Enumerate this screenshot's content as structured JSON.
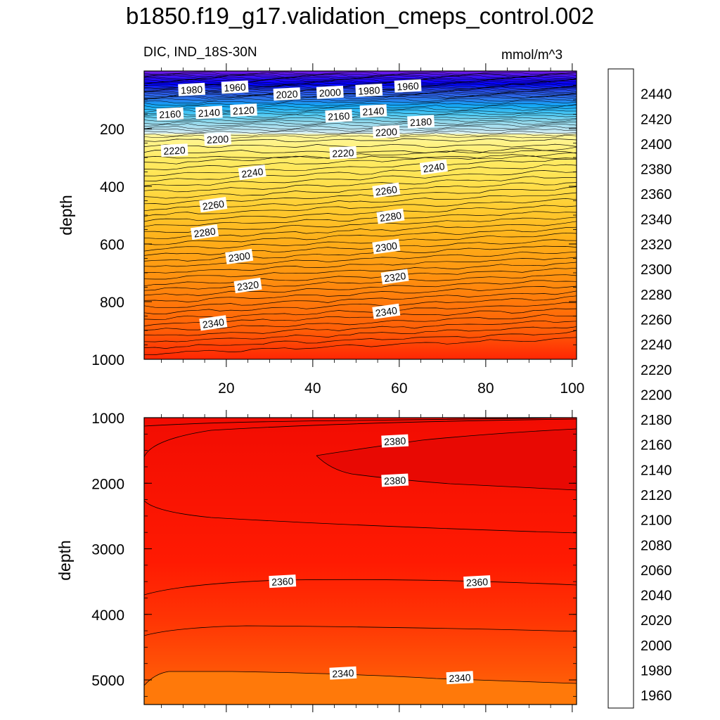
{
  "title": "b1850.f19_g17.validation_cmeps_control.002",
  "subtitle_left": "DIC, IND_18S-30N",
  "subtitle_right": "mmol/m^3",
  "chart_data": [
    {
      "type": "contour",
      "panel": "upper",
      "ylabel": "depth",
      "x_range": [
        1,
        101
      ],
      "y_range": [
        0,
        1000
      ],
      "y_inverted": true,
      "xticks": [
        20,
        40,
        60,
        80,
        100
      ],
      "yticks": [
        200,
        400,
        600,
        800,
        1000
      ],
      "contour_labels": [
        {
          "label": "1980",
          "x": 12,
          "y": 65
        },
        {
          "label": "1960",
          "x": 22,
          "y": 57
        },
        {
          "label": "2020",
          "x": 34,
          "y": 81
        },
        {
          "label": "2000",
          "x": 44,
          "y": 75
        },
        {
          "label": "1980",
          "x": 53,
          "y": 68
        },
        {
          "label": "1960",
          "x": 62,
          "y": 53
        },
        {
          "label": "2160",
          "x": 7,
          "y": 150
        },
        {
          "label": "2140",
          "x": 16,
          "y": 145
        },
        {
          "label": "2120",
          "x": 24,
          "y": 137
        },
        {
          "label": "2160",
          "x": 46,
          "y": 157
        },
        {
          "label": "2140",
          "x": 54,
          "y": 140
        },
        {
          "label": "2180",
          "x": 65,
          "y": 177
        },
        {
          "label": "2200",
          "x": 18,
          "y": 237
        },
        {
          "label": "2200",
          "x": 57,
          "y": 212
        },
        {
          "label": "2220",
          "x": 8,
          "y": 276
        },
        {
          "label": "2220",
          "x": 47,
          "y": 285
        },
        {
          "label": "2240",
          "x": 26,
          "y": 353
        },
        {
          "label": "2240",
          "x": 68,
          "y": 335
        },
        {
          "label": "2260",
          "x": 17,
          "y": 465
        },
        {
          "label": "2260",
          "x": 57,
          "y": 415
        },
        {
          "label": "2280",
          "x": 15,
          "y": 560
        },
        {
          "label": "2280",
          "x": 58,
          "y": 505
        },
        {
          "label": "2300",
          "x": 23,
          "y": 645
        },
        {
          "label": "2300",
          "x": 57,
          "y": 610
        },
        {
          "label": "2320",
          "x": 25,
          "y": 745
        },
        {
          "label": "2320",
          "x": 59,
          "y": 715
        },
        {
          "label": "2340",
          "x": 17,
          "y": 875
        },
        {
          "label": "2340",
          "x": 57,
          "y": 835
        }
      ]
    },
    {
      "type": "contour",
      "panel": "lower",
      "ylabel": "depth",
      "x_range": [
        1,
        101
      ],
      "y_range": [
        1000,
        5375
      ],
      "y_inverted": true,
      "yticks": [
        1000,
        2000,
        3000,
        4000,
        5000
      ],
      "contour_labels": [
        {
          "label": "2380",
          "x": 59,
          "y": 1360
        },
        {
          "label": "2380",
          "x": 59,
          "y": 1960
        },
        {
          "label": "2360",
          "x": 33,
          "y": 3500
        },
        {
          "label": "2360",
          "x": 78,
          "y": 3510
        },
        {
          "label": "2340",
          "x": 47,
          "y": 4900
        },
        {
          "label": "2340",
          "x": 74,
          "y": 4970
        }
      ]
    }
  ],
  "colorbar": {
    "levels_min": 1950,
    "levels_max": 2460,
    "step": 10,
    "tick_labels": [
      "1960",
      "1980",
      "2000",
      "2020",
      "2040",
      "2060",
      "2080",
      "2100",
      "2120",
      "2140",
      "2160",
      "2180",
      "2200",
      "2220",
      "2240",
      "2260",
      "2280",
      "2300",
      "2320",
      "2340",
      "2360",
      "2380",
      "2400",
      "2420",
      "2440"
    ],
    "colors": [
      "#7b1fe0",
      "#6a18e8",
      "#5a14f0",
      "#3d10f5",
      "#1a0ef8",
      "#0000ff",
      "#1030f2",
      "#2e4fe6",
      "#2f62e5",
      "#2d74ea",
      "#2c86ee",
      "#1c92f2",
      "#0a9ef5",
      "#06aaf7",
      "#12b6f8",
      "#2cc0f6",
      "#4ec9f3",
      "#6dcfee",
      "#8dd6ea",
      "#a3dcee",
      "#b5e2f0",
      "#c5e8f2",
      "#d6eef5",
      "#fff79a",
      "#fff27e",
      "#ffec66",
      "#ffe24f",
      "#ffd63d",
      "#ffcb2f",
      "#ffbe22",
      "#ffb11a",
      "#ffa314",
      "#ff9510",
      "#ff870c",
      "#ff790a",
      "#ff6b08",
      "#ff5d07",
      "#ff4f06",
      "#ff4105",
      "#ff3404",
      "#ff2603",
      "#ff1802",
      "#f50d02",
      "#e80903",
      "#d90808",
      "#d51818",
      "#df3a3a",
      "#e86060",
      "#f08a8a",
      "#f9b4b4",
      "#fcc8c8"
    ]
  }
}
